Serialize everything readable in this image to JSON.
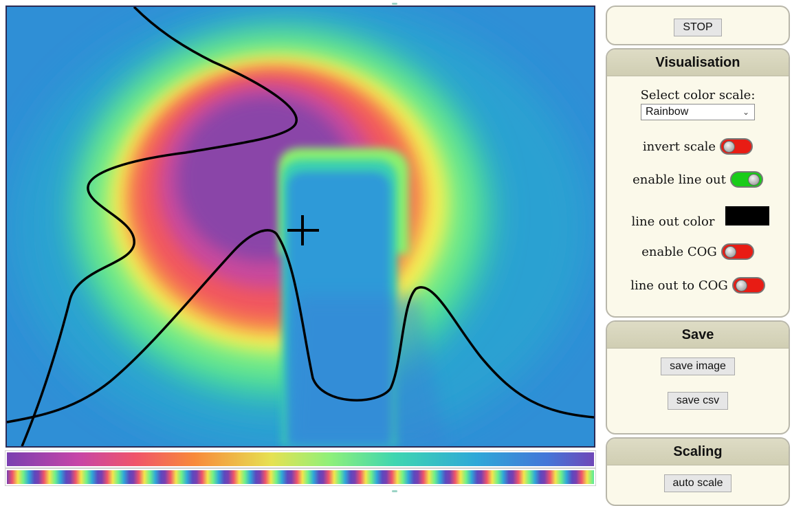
{
  "controls": {
    "stop_label": "STOP"
  },
  "visualisation": {
    "title": "Visualisation",
    "color_scale_label": "Select color scale:",
    "color_scale_value": "Rainbow",
    "invert_scale_label": "invert scale",
    "invert_scale_on": false,
    "line_out_label": "enable line out",
    "line_out_on": true,
    "line_out_color_label": "line out color",
    "line_out_color": "#000000",
    "cog_label": "enable COG",
    "cog_on": false,
    "line_out_cog_label": "line out to COG",
    "line_out_cog_on": false
  },
  "save": {
    "title": "Save",
    "save_image_label": "save image",
    "save_csv_label": "save csv"
  },
  "scaling": {
    "title": "Scaling",
    "auto_scale_label": "auto scale"
  },
  "colors": {
    "toggle_off": "#e81c14",
    "toggle_on": "#19cc19",
    "panel_bg": "#fbf9ea",
    "panel_head": "#d4d2b8"
  },
  "icons": {
    "dropdown": "chevron-down-icon",
    "cursor": "crosshair-icon"
  }
}
